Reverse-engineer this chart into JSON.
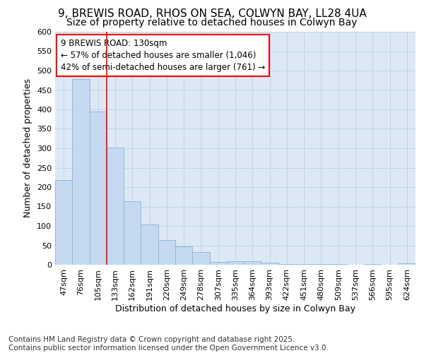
{
  "title_line1": "9, BREWIS ROAD, RHOS ON SEA, COLWYN BAY, LL28 4UA",
  "title_line2": "Size of property relative to detached houses in Colwyn Bay",
  "xlabel": "Distribution of detached houses by size in Colwyn Bay",
  "ylabel": "Number of detached properties",
  "categories": [
    "47sqm",
    "76sqm",
    "105sqm",
    "133sqm",
    "162sqm",
    "191sqm",
    "220sqm",
    "249sqm",
    "278sqm",
    "307sqm",
    "335sqm",
    "364sqm",
    "393sqm",
    "422sqm",
    "451sqm",
    "480sqm",
    "509sqm",
    "537sqm",
    "566sqm",
    "595sqm",
    "624sqm"
  ],
  "values": [
    218,
    479,
    395,
    302,
    163,
    104,
    63,
    47,
    32,
    8,
    10,
    10,
    6,
    2,
    2,
    1,
    1,
    0,
    1,
    0,
    3
  ],
  "bar_color": "#c5d9f0",
  "bar_edge_color": "#8fb8e0",
  "grid_color": "#c0d4e8",
  "ax_bg_color": "#dce9f5",
  "fig_bg_color": "#ffffff",
  "vline_color": "red",
  "annotation_text": "9 BREWIS ROAD: 130sqm\n← 57% of detached houses are smaller (1,046)\n42% of semi-detached houses are larger (761) →",
  "annotation_box_color": "white",
  "annotation_box_edge": "red",
  "ylim": [
    0,
    600
  ],
  "yticks": [
    0,
    50,
    100,
    150,
    200,
    250,
    300,
    350,
    400,
    450,
    500,
    550,
    600
  ],
  "footer": "Contains HM Land Registry data © Crown copyright and database right 2025.\nContains public sector information licensed under the Open Government Licence v3.0.",
  "title_fontsize": 11,
  "subtitle_fontsize": 10,
  "label_fontsize": 9,
  "tick_fontsize": 8,
  "footer_fontsize": 7.5,
  "vline_x_index": 3
}
